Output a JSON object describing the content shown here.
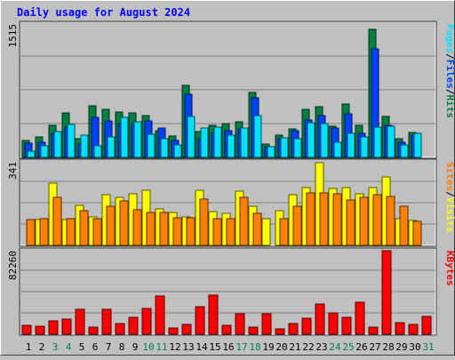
{
  "chart_data": [
    {
      "type": "bar",
      "title": "Daily usage for August 2024",
      "categories": [
        "1",
        "2",
        "3",
        "4",
        "5",
        "6",
        "7",
        "8",
        "9",
        "10",
        "11",
        "12",
        "13",
        "14",
        "15",
        "16",
        "17",
        "18",
        "19",
        "20",
        "21",
        "22",
        "23",
        "24",
        "25",
        "26",
        "27",
        "28",
        "29",
        "30",
        "31"
      ],
      "weekend_days": [
        "3",
        "4",
        "10",
        "11",
        "17",
        "18",
        "24",
        "25",
        "31"
      ],
      "ymax_label": "1515",
      "ylim": [
        0,
        1515
      ],
      "side_label": [
        "Pages",
        "/",
        "Files",
        "/",
        "Hits"
      ],
      "series": [
        {
          "name": "Hits",
          "color": "#008040",
          "values": [
            192,
            232,
            366,
            502,
            211,
            586,
            550,
            512,
            500,
            478,
            300,
            247,
            816,
            297,
            366,
            380,
            403,
            736,
            154,
            250,
            320,
            545,
            576,
            355,
            610,
            366,
            1450,
            465,
            215,
            285,
            0
          ]
        },
        {
          "name": "Files",
          "color": "#0040ff",
          "values": [
            160,
            167,
            270,
            348,
            154,
            450,
            418,
            380,
            388,
            410,
            337,
            190,
            720,
            210,
            287,
            300,
            320,
            672,
            120,
            216,
            300,
            426,
            470,
            338,
            497,
            276,
            1230,
            366,
            175,
            254,
            0
          ]
        },
        {
          "name": "Pages",
          "color": "#00e0ff",
          "values": [
            75,
            136,
            290,
            370,
            248,
            130,
            236,
            450,
            408,
            262,
            210,
            143,
            460,
            330,
            345,
            252,
            330,
            473,
            122,
            220,
            210,
            390,
            380,
            175,
            270,
            232,
            344,
            355,
            140,
            272,
            0
          ]
        }
      ]
    },
    {
      "type": "bar",
      "categories": [
        "1",
        "2",
        "3",
        "4",
        "5",
        "6",
        "7",
        "8",
        "9",
        "10",
        "11",
        "12",
        "13",
        "14",
        "15",
        "16",
        "17",
        "18",
        "19",
        "20",
        "21",
        "22",
        "23",
        "24",
        "25",
        "26",
        "27",
        "28",
        "29",
        "30",
        "31"
      ],
      "ymax_label": "341",
      "ylim": [
        0,
        341
      ],
      "side_label": [
        "Sites",
        "/",
        "Visits"
      ],
      "series": [
        {
          "name": "Visits",
          "color": "#ffff00",
          "values": [
            0,
            104,
            255,
            104,
            165,
            115,
            208,
            195,
            212,
            225,
            150,
            136,
            115,
            224,
            138,
            130,
            222,
            160,
            108,
            140,
            208,
            235,
            336,
            231,
            235,
            210,
            235,
            280,
            108,
            100,
            0
          ]
        },
        {
          "name": "Sites",
          "color": "#ff8000",
          "values": [
            104,
            108,
            195,
            108,
            140,
            110,
            160,
            180,
            145,
            134,
            135,
            112,
            112,
            190,
            110,
            110,
            195,
            132,
            0,
            110,
            160,
            215,
            215,
            210,
            186,
            195,
            205,
            200,
            160,
            98,
            0
          ]
        }
      ]
    },
    {
      "type": "bar",
      "categories": [
        "1",
        "2",
        "3",
        "4",
        "5",
        "6",
        "7",
        "8",
        "9",
        "10",
        "11",
        "12",
        "13",
        "14",
        "15",
        "16",
        "17",
        "18",
        "19",
        "20",
        "21",
        "22",
        "23",
        "24",
        "25",
        "26",
        "27",
        "28",
        "29",
        "30",
        "31"
      ],
      "ymax_label": "82260",
      "ylim": [
        0,
        82260
      ],
      "side_label": [
        "KBytes"
      ],
      "series": [
        {
          "name": "KBytes",
          "color": "#ff0000",
          "values": [
            8800,
            7800,
            13100,
            15000,
            24500,
            7200,
            24300,
            10500,
            16800,
            25200,
            37500,
            5900,
            9600,
            26700,
            38800,
            8800,
            19800,
            7000,
            20400,
            5200,
            10300,
            15600,
            30100,
            20900,
            16700,
            31500,
            7000,
            82260,
            11000,
            9400,
            17100
          ]
        }
      ]
    }
  ]
}
